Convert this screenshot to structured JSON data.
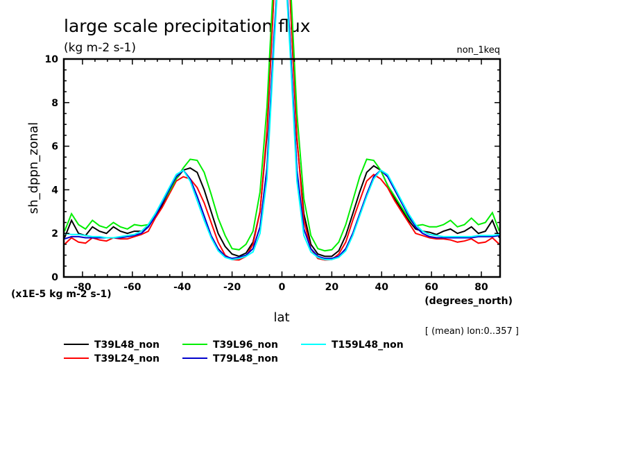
{
  "chart_data": {
    "type": "line",
    "title": "large scale precipitation flux",
    "units": "(kg m-2 s-1)",
    "top_right_label": "non_1keq",
    "xlabel": "lat",
    "x_units": "(degrees_north)",
    "ylabel": "sh_dppn_zonal",
    "y_scale_label": "(x1E-5 kg m-2 s-1)",
    "note": "[ (mean) lon:0..357 ]",
    "xlim": [
      -87.5,
      87.5
    ],
    "ylim": [
      0,
      10
    ],
    "x_ticks": [
      -80,
      -60,
      -40,
      -20,
      0,
      20,
      40,
      60,
      80
    ],
    "x_tick_labels": [
      "-80",
      "-60",
      "-40",
      "-20",
      "0",
      "20",
      "40",
      "60",
      "80"
    ],
    "y_ticks": [
      0,
      2,
      4,
      6,
      8,
      10
    ],
    "y_tick_labels": [
      "0",
      "2",
      "4",
      "6",
      "8",
      "10"
    ],
    "grid": false,
    "legend_position": "bottom-left",
    "x": [
      -87.2,
      -84.4,
      -81.6,
      -78.8,
      -76.0,
      -73.2,
      -70.4,
      -67.6,
      -64.8,
      -62.0,
      -59.2,
      -56.4,
      -53.6,
      -50.8,
      -48.0,
      -45.2,
      -42.4,
      -39.6,
      -36.8,
      -34.0,
      -31.2,
      -28.4,
      -25.6,
      -22.8,
      -20.0,
      -17.2,
      -14.4,
      -11.6,
      -8.8,
      -6.0,
      -3.2,
      -0.4,
      0.4,
      3.2,
      6.0,
      8.8,
      11.6,
      14.4,
      17.2,
      20.0,
      22.8,
      25.6,
      28.4,
      31.2,
      34.0,
      36.8,
      39.6,
      42.4,
      45.2,
      48.0,
      50.8,
      53.6,
      56.4,
      59.2,
      62.0,
      64.8,
      67.6,
      70.4,
      73.2,
      76.0,
      78.8,
      81.6,
      84.4,
      87.2
    ],
    "series": [
      {
        "name": "T39L48_non",
        "color": "#000000",
        "values": [
          1.8,
          2.6,
          2.0,
          1.9,
          2.3,
          2.1,
          2.0,
          2.3,
          2.1,
          2.0,
          2.1,
          2.1,
          2.3,
          2.8,
          3.3,
          3.9,
          4.5,
          4.9,
          5.0,
          4.8,
          4.0,
          3.0,
          2.0,
          1.4,
          1.05,
          0.95,
          1.1,
          1.6,
          3.0,
          6.5,
          13.0,
          16.0,
          16.0,
          13.0,
          6.3,
          2.9,
          1.5,
          1.05,
          0.95,
          0.95,
          1.2,
          1.9,
          2.9,
          3.9,
          4.8,
          5.1,
          4.9,
          4.2,
          3.6,
          3.1,
          2.6,
          2.2,
          2.1,
          2.05,
          1.95,
          2.1,
          2.2,
          2.0,
          2.1,
          2.3,
          2.0,
          2.1,
          2.6,
          1.8
        ]
      },
      {
        "name": "T39L24_non",
        "color": "#ff0000",
        "values": [
          1.5,
          1.8,
          1.6,
          1.55,
          1.8,
          1.7,
          1.65,
          1.8,
          1.75,
          1.75,
          1.85,
          1.95,
          2.1,
          2.7,
          3.2,
          3.8,
          4.4,
          4.6,
          4.5,
          4.1,
          3.4,
          2.5,
          1.6,
          1.0,
          0.8,
          0.78,
          0.95,
          1.5,
          3.0,
          6.7,
          13.0,
          16.0,
          16.0,
          13.0,
          6.4,
          2.6,
          1.3,
          0.85,
          0.78,
          0.8,
          1.05,
          1.6,
          2.6,
          3.5,
          4.4,
          4.7,
          4.5,
          4.1,
          3.5,
          3.0,
          2.5,
          2.0,
          1.9,
          1.8,
          1.75,
          1.75,
          1.7,
          1.6,
          1.65,
          1.75,
          1.55,
          1.6,
          1.8,
          1.5
        ]
      },
      {
        "name": "T39L96_non",
        "color": "#00ee00",
        "values": [
          2.1,
          2.9,
          2.4,
          2.2,
          2.6,
          2.35,
          2.25,
          2.5,
          2.3,
          2.2,
          2.4,
          2.35,
          2.4,
          2.9,
          3.4,
          3.9,
          4.5,
          5.0,
          5.4,
          5.35,
          4.8,
          3.8,
          2.7,
          1.9,
          1.3,
          1.25,
          1.5,
          2.1,
          3.9,
          7.8,
          14.0,
          16.0,
          16.0,
          14.0,
          7.5,
          3.6,
          1.9,
          1.3,
          1.2,
          1.25,
          1.6,
          2.4,
          3.5,
          4.6,
          5.4,
          5.35,
          4.9,
          4.2,
          3.7,
          3.2,
          2.7,
          2.35,
          2.4,
          2.3,
          2.3,
          2.4,
          2.6,
          2.3,
          2.4,
          2.7,
          2.4,
          2.5,
          2.95,
          2.1
        ]
      },
      {
        "name": "T79L48_non",
        "color": "#0000cc",
        "values": [
          1.75,
          1.85,
          1.85,
          1.8,
          1.8,
          1.8,
          1.8,
          1.8,
          1.8,
          1.85,
          1.9,
          2.0,
          2.3,
          2.8,
          3.4,
          4.0,
          4.6,
          4.9,
          4.5,
          3.7,
          2.8,
          1.9,
          1.3,
          0.95,
          0.85,
          0.9,
          1.0,
          1.3,
          2.3,
          5.0,
          11.0,
          16.0,
          16.0,
          11.0,
          4.9,
          2.2,
          1.3,
          0.95,
          0.85,
          0.85,
          0.95,
          1.3,
          2.0,
          2.9,
          3.8,
          4.6,
          4.9,
          4.6,
          4.0,
          3.4,
          2.8,
          2.3,
          2.0,
          1.85,
          1.8,
          1.8,
          1.8,
          1.8,
          1.8,
          1.8,
          1.85,
          1.85,
          1.85,
          1.9
        ]
      },
      {
        "name": "T159L48_non",
        "color": "#00ffff",
        "values": [
          2.0,
          1.95,
          1.95,
          1.9,
          1.85,
          1.85,
          1.8,
          1.8,
          1.85,
          1.9,
          1.95,
          2.1,
          2.4,
          2.9,
          3.5,
          4.1,
          4.7,
          4.9,
          4.4,
          3.5,
          2.6,
          1.8,
          1.2,
          0.9,
          0.8,
          0.85,
          0.95,
          1.15,
          2.0,
          4.5,
          10.5,
          16.0,
          16.0,
          10.5,
          4.4,
          1.9,
          1.15,
          0.9,
          0.8,
          0.8,
          0.9,
          1.2,
          1.9,
          2.8,
          3.7,
          4.5,
          4.9,
          4.7,
          4.1,
          3.5,
          2.9,
          2.4,
          2.1,
          1.95,
          1.9,
          1.85,
          1.85,
          1.85,
          1.85,
          1.85,
          1.9,
          1.9,
          1.9,
          1.95
        ]
      }
    ]
  }
}
